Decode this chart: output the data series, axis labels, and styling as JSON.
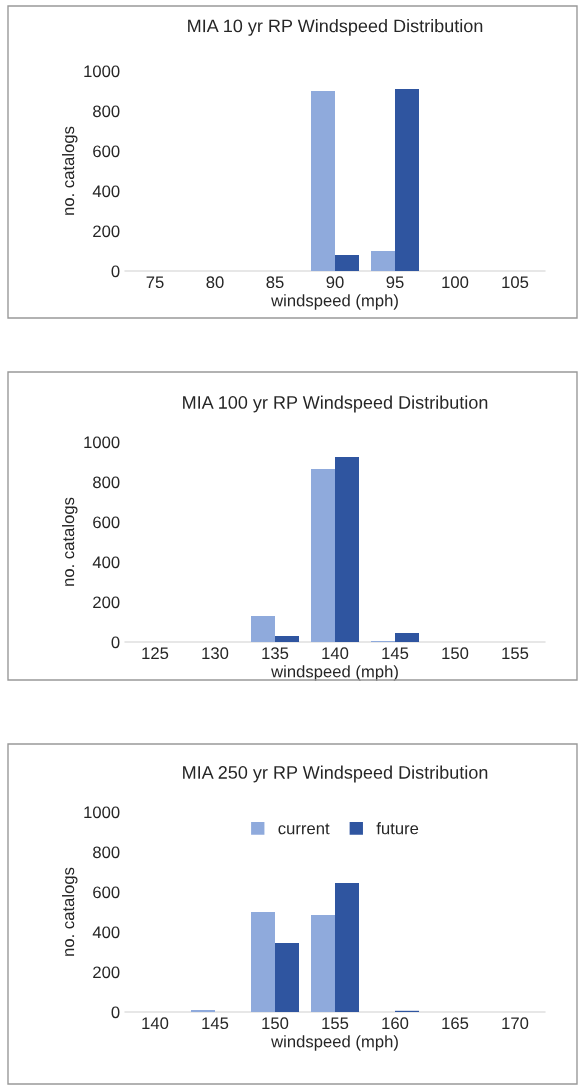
{
  "chart_data": [
    {
      "type": "bar",
      "title": "MIA 10 yr RP Windspeed Distribution",
      "xlabel": "windspeed (mph)",
      "ylabel": "no. catalogs",
      "categories": [
        "75",
        "80",
        "85",
        "90",
        "95",
        "100",
        "105"
      ],
      "ylim": [
        0,
        1000
      ],
      "yticks": [
        0,
        200,
        400,
        600,
        800,
        1000
      ],
      "legend": false,
      "series": [
        {
          "color": "#8faadc",
          "values": [
            0,
            0,
            0,
            900,
            100,
            0,
            0
          ]
        },
        {
          "color": "#2f55a0",
          "values": [
            0,
            0,
            0,
            80,
            910,
            0,
            0
          ]
        }
      ]
    },
    {
      "type": "bar",
      "title": "MIA 100 yr RP Windspeed Distribution",
      "xlabel": "windspeed (mph)",
      "ylabel": "no. catalogs",
      "categories": [
        "125",
        "130",
        "135",
        "140",
        "145",
        "150",
        "155"
      ],
      "ylim": [
        0,
        1000
      ],
      "yticks": [
        0,
        200,
        400,
        600,
        800,
        1000
      ],
      "legend": false,
      "series": [
        {
          "color": "#8faadc",
          "values": [
            0,
            0,
            130,
            865,
            5,
            0,
            0
          ]
        },
        {
          "color": "#2f55a0",
          "values": [
            0,
            0,
            30,
            925,
            45,
            0,
            0
          ]
        }
      ]
    },
    {
      "type": "bar",
      "title": "MIA 250 yr RP Windspeed Distribution",
      "xlabel": "windspeed (mph)",
      "ylabel": "no. catalogs",
      "categories": [
        "140",
        "145",
        "150",
        "155",
        "160",
        "165",
        "170"
      ],
      "ylim": [
        0,
        1000
      ],
      "yticks": [
        0,
        200,
        400,
        600,
        800,
        1000
      ],
      "legend": "top",
      "series": [
        {
          "name": "current",
          "color": "#8faadc",
          "values": [
            0,
            10,
            500,
            485,
            0,
            0,
            0
          ]
        },
        {
          "name": "future",
          "color": "#2f55a0",
          "values": [
            0,
            0,
            345,
            645,
            6,
            0,
            0
          ]
        }
      ]
    }
  ]
}
